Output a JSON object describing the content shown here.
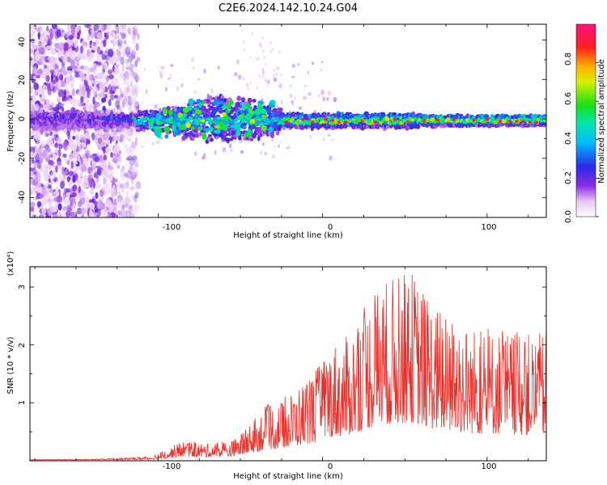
{
  "figure": {
    "title": "C2E6.2024.142.10.24.G04"
  },
  "chart_data": [
    {
      "type": "heatmap",
      "title": "C2E6.2024.142.10.24.G04",
      "xlabel": "Height of straight line (km)",
      "ylabel": "Frequency (Hz)",
      "xlim": [
        -178,
        136
      ],
      "ylim": [
        -50,
        48
      ],
      "xticks": [
        "-100",
        "0",
        "100"
      ],
      "yticks": [
        "40",
        "20",
        "0",
        "-20",
        "-40"
      ],
      "colorbar": {
        "label": "Normalized spectral amplitude",
        "range": [
          0,
          1
        ],
        "ticks": [
          "0.0",
          "0.2",
          "0.4",
          "0.6",
          "0.8"
        ],
        "colormap": "rainbow (white-purple-blue-cyan-green-yellow-red-magenta)"
      },
      "features": {
        "central_band_freq_hz": 0,
        "noise_region_x": [
          -178,
          -115
        ],
        "disturbed_region_x": [
          -110,
          -25
        ],
        "disturbed_freq_range_hz": [
          -12,
          12
        ],
        "strong_band_region_x": [
          -20,
          136
        ]
      }
    },
    {
      "type": "line",
      "xlabel": "Height of straight line (km)",
      "ylabel": "SNR (10 * v/v)",
      "yscale_label": "(x10⁴)",
      "xlim": [
        -178,
        136
      ],
      "ylim": [
        0,
        3.35
      ],
      "xticks": [
        "-100",
        "0",
        "100"
      ],
      "yticks": [
        "1",
        "2",
        "3"
      ],
      "color": "#e8302a",
      "envelope_x": [
        -178,
        -140,
        -120,
        -105,
        -95,
        -85,
        -70,
        -55,
        -45,
        -35,
        -25,
        -15,
        -5,
        0,
        5,
        15,
        25,
        35,
        45,
        55,
        65,
        75,
        85,
        95,
        105,
        115,
        125,
        136
      ],
      "envelope_y": [
        0.02,
        0.03,
        0.05,
        0.08,
        0.2,
        0.35,
        0.3,
        0.35,
        0.6,
        0.95,
        1.05,
        1.3,
        1.55,
        1.75,
        2.05,
        2.15,
        2.7,
        3.1,
        3.2,
        3.3,
        2.8,
        2.5,
        2.4,
        2.3,
        2.3,
        2.25,
        2.2,
        2.2
      ]
    }
  ]
}
